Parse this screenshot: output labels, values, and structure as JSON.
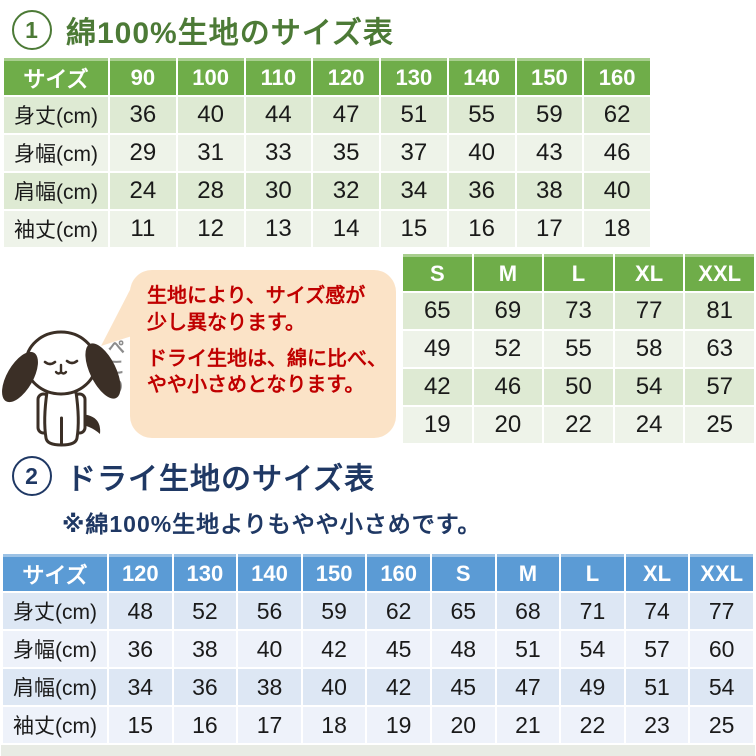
{
  "titles": {
    "t1_number": "1",
    "t1_text": "綿100%生地のサイズ表",
    "t2_number": "2",
    "t2_text": "ドライ生地のサイズ表",
    "t2_subtitle": "※綿100%生地よりもやや小さめです。"
  },
  "speech_bubble": {
    "lines": [
      "生地により、サイズ感が",
      "少し異なります。",
      "ドライ生地は、綿に比べ、",
      "やや小さめとなります。"
    ]
  },
  "dog": {
    "caption": "ぺこり"
  },
  "cotton_table": {
    "header": [
      "サイズ",
      "90",
      "100",
      "110",
      "120",
      "130",
      "140",
      "150",
      "160"
    ],
    "rows": [
      {
        "label": "身丈(cm)",
        "values": [
          36,
          40,
          44,
          47,
          51,
          55,
          59,
          62
        ]
      },
      {
        "label": "身幅(cm)",
        "values": [
          29,
          31,
          33,
          35,
          37,
          40,
          43,
          46
        ]
      },
      {
        "label": "肩幅(cm)",
        "values": [
          24,
          28,
          30,
          32,
          34,
          36,
          38,
          40
        ]
      },
      {
        "label": "袖丈(cm)",
        "values": [
          11,
          12,
          13,
          14,
          15,
          16,
          17,
          18
        ]
      }
    ]
  },
  "adult_table": {
    "header": [
      "S",
      "M",
      "L",
      "XL",
      "XXL"
    ],
    "rows": [
      {
        "values": [
          65,
          69,
          73,
          77,
          81
        ]
      },
      {
        "values": [
          49,
          52,
          55,
          58,
          63
        ]
      },
      {
        "values": [
          42,
          46,
          50,
          54,
          57
        ]
      },
      {
        "values": [
          19,
          20,
          22,
          24,
          25
        ]
      }
    ]
  },
  "dry_table": {
    "header": [
      "サイズ",
      "120",
      "130",
      "140",
      "150",
      "160",
      "S",
      "M",
      "L",
      "XL",
      "XXL"
    ],
    "rows": [
      {
        "label": "身丈(cm)",
        "values": [
          48,
          52,
          56,
          59,
          62,
          65,
          68,
          71,
          74,
          77
        ]
      },
      {
        "label": "身幅(cm)",
        "values": [
          36,
          38,
          40,
          42,
          45,
          48,
          51,
          54,
          57,
          60
        ]
      },
      {
        "label": "肩幅(cm)",
        "values": [
          34,
          36,
          38,
          40,
          42,
          45,
          47,
          49,
          51,
          54
        ]
      },
      {
        "label": "袖丈(cm)",
        "values": [
          15,
          16,
          17,
          18,
          19,
          20,
          21,
          22,
          23,
          25
        ]
      }
    ]
  },
  "colors": {
    "cotton_header_green": "#6FAD49",
    "dry_header_blue": "#5B9BD5",
    "title1_green": "#4C7A36",
    "title2_navy": "#1F3864",
    "bubble_background": "#FBE3C7",
    "bubble_text_red": "#C00000"
  }
}
